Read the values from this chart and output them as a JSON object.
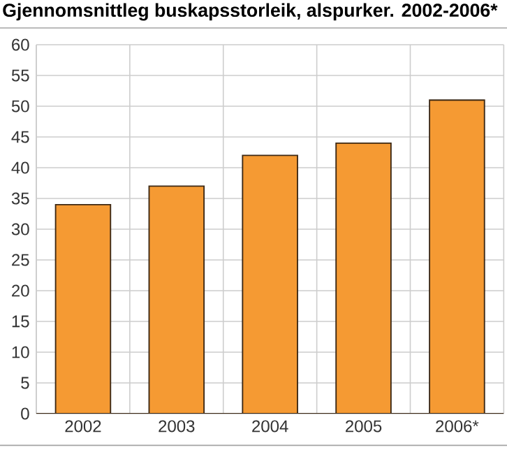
{
  "chart_data": {
    "type": "bar",
    "title": "Gjennomsnittleg buskapsstorleik, alspurker. 2002-2006*",
    "categories": [
      "2002",
      "2003",
      "2004",
      "2005",
      "2006*"
    ],
    "values": [
      34,
      37,
      42,
      44,
      51
    ],
    "color": "#f59a33",
    "ylim": [
      0,
      60
    ],
    "yticks": [
      0,
      5,
      10,
      15,
      20,
      25,
      30,
      35,
      40,
      45,
      50,
      55,
      60
    ],
    "grid": true
  }
}
